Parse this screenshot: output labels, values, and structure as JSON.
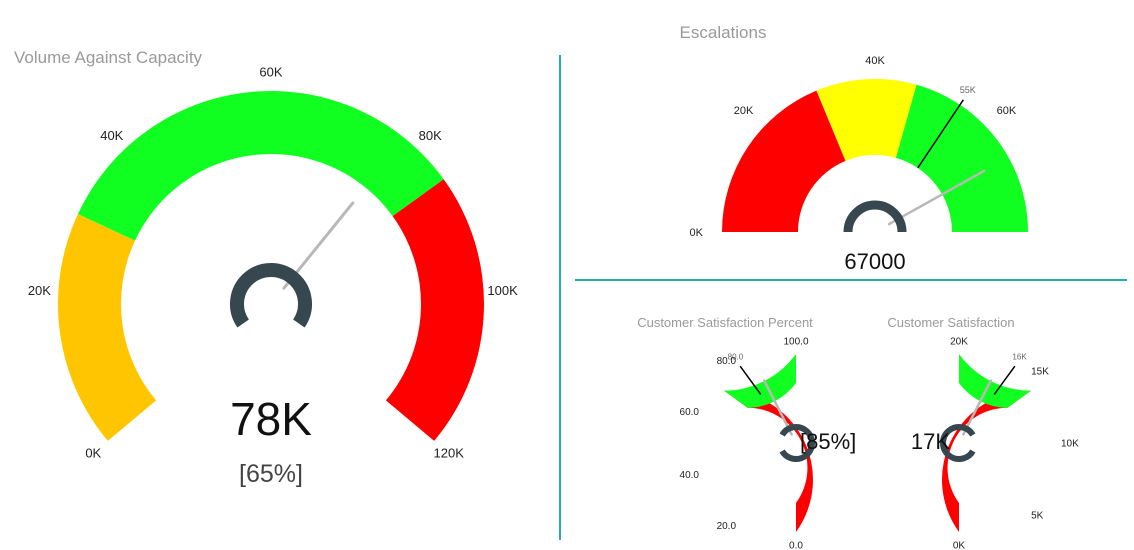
{
  "colors": {
    "green": "#10ff20",
    "red": "#ff0000",
    "yellow": "#ffff00",
    "amber": "#ffc600",
    "hub": "#37474f",
    "needle": "#b8b8b8",
    "divider": "#1fb0a8",
    "title": "#9a9a9a"
  },
  "gauges": {
    "volume": {
      "title": "Volume Against Capacity",
      "min": 0,
      "max": 120000,
      "value": 78000,
      "value_label": "78K",
      "percent_label": "[65%]",
      "ticks": [
        {
          "value": 0,
          "label": "0K"
        },
        {
          "value": 20000,
          "label": "20K"
        },
        {
          "value": 40000,
          "label": "40K"
        },
        {
          "value": 60000,
          "label": "60K"
        },
        {
          "value": 80000,
          "label": "80K"
        },
        {
          "value": 100000,
          "label": "100K"
        },
        {
          "value": 120000,
          "label": "120K"
        }
      ],
      "bands": [
        {
          "from": 0,
          "to": 30000,
          "color": "#ffc600"
        },
        {
          "from": 30000,
          "to": 85000,
          "color": "#10ff20"
        },
        {
          "from": 85000,
          "to": 120000,
          "color": "#ff0000"
        }
      ]
    },
    "escalations": {
      "title": "Escalations",
      "min": 0,
      "max": 80000,
      "value": 67000,
      "value_label": "67000",
      "target": 55000,
      "target_label": "55K",
      "ticks": [
        {
          "value": 0,
          "label": "0K"
        },
        {
          "value": 20000,
          "label": "20K"
        },
        {
          "value": 40000,
          "label": "40K"
        },
        {
          "value": 60000,
          "label": "60K"
        }
      ],
      "bands": [
        {
          "from": 0,
          "to": 30000,
          "color": "#ff0000"
        },
        {
          "from": 30000,
          "to": 47000,
          "color": "#ffff00"
        },
        {
          "from": 47000,
          "to": 80000,
          "color": "#10ff20"
        }
      ]
    },
    "csat_percent": {
      "title": "Customer Satisfaction Percent",
      "min": 0,
      "max": 100,
      "value": 85,
      "value_label": "[85%]",
      "target": 80,
      "target_label": "80.0",
      "ticks": [
        {
          "value": 0,
          "label": "0.0"
        },
        {
          "value": 20,
          "label": "20.0"
        },
        {
          "value": 40,
          "label": "40.0"
        },
        {
          "value": 60,
          "label": "60.0"
        },
        {
          "value": 80,
          "label": "80.0"
        },
        {
          "value": 100,
          "label": "100.0"
        }
      ],
      "bands": [
        {
          "from": 0,
          "to": 70,
          "color": "#ff0000"
        },
        {
          "from": 70,
          "to": 100,
          "color": "#10ff20"
        }
      ]
    },
    "csat": {
      "title": "Customer Satisfaction",
      "min": 0,
      "max": 20000,
      "value": 17000,
      "value_label": "17K",
      "target": 16000,
      "target_label": "16K",
      "ticks": [
        {
          "value": 0,
          "label": "0K"
        },
        {
          "value": 5000,
          "label": "5K"
        },
        {
          "value": 10000,
          "label": "10K"
        },
        {
          "value": 15000,
          "label": "15K"
        },
        {
          "value": 20000,
          "label": "20K"
        }
      ],
      "bands": [
        {
          "from": 0,
          "to": 14000,
          "color": "#ff0000"
        },
        {
          "from": 14000,
          "to": 20000,
          "color": "#10ff20"
        }
      ]
    }
  }
}
